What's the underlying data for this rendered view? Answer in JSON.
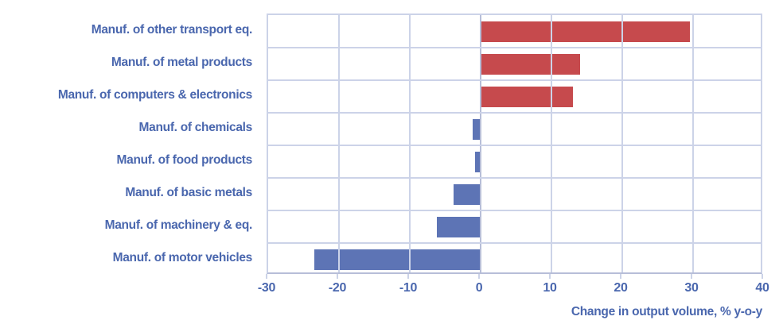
{
  "chart_data": {
    "type": "bar",
    "orientation": "horizontal",
    "title": "",
    "xlabel": "Change in output volume, % y-o-y",
    "ylabel": "",
    "xlim": [
      -30,
      40
    ],
    "xticks": [
      -30,
      -20,
      -10,
      0,
      10,
      20,
      30,
      40
    ],
    "grid": true,
    "categories": [
      "Manuf. of other transport eq.",
      "Manuf. of metal products",
      "Manuf. of computers & electronics",
      "Manuf. of chemicals",
      "Manuf. of food products",
      "Manuf. of basic metals",
      "Manuf. of machinery & eq.",
      "Manuf. of motor vehicles"
    ],
    "values": [
      29.5,
      14,
      13,
      -1.1,
      -0.8,
      -3.8,
      -6.2,
      -23.5
    ],
    "colors": {
      "positive_bar": "#c64a4d",
      "negative_bar": "#5d74b5",
      "text": "#4a67ae",
      "gridline": "#ccd3e8",
      "zero_line": "#b7bed8"
    }
  }
}
